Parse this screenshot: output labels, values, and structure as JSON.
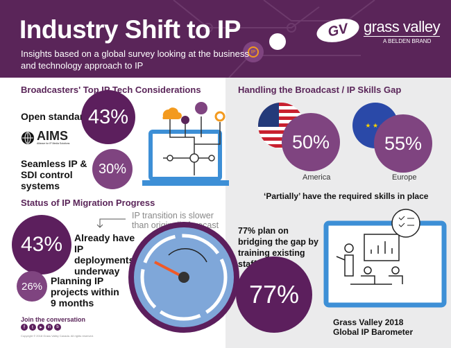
{
  "header": {
    "title": "Industry Shift to IP",
    "subtitle": "Insights based on a global survey looking at the business and technology approach to IP",
    "brand": {
      "name": "grass valley",
      "tagline": "A BELDEN BRAND"
    },
    "pin_label": "IP"
  },
  "considerations": {
    "heading": "Broadcasters' Top IP Tech Considerations",
    "items": [
      {
        "label": "Open standards",
        "value": "43%"
      },
      {
        "label": "Seamless IP & SDI control systems",
        "value": "30%"
      }
    ],
    "aims_logo": "AIMS",
    "aims_tagline": "Alliance for IP Media Solutions"
  },
  "migration": {
    "heading": "Status of IP Migration Progress",
    "note": "IP transition is slower than originally forecast",
    "items": [
      {
        "label": "Already have IP deployments underway",
        "value": "43%"
      },
      {
        "label": "Planning IP projects within 9 months",
        "value": "26%"
      }
    ]
  },
  "footer": {
    "join": "Join the conversation",
    "social_icons": [
      "facebook-icon",
      "twitter-icon",
      "youtube-icon",
      "linkedin-icon",
      "blog-icon"
    ],
    "copyright": "Copyright © 2018 Grass Valley Canada. All rights reserved."
  },
  "skills": {
    "heading": "Handling the Broadcast / IP Skills Gap",
    "regions": [
      {
        "name": "America",
        "value": "50%"
      },
      {
        "name": "Europe",
        "value": "55%"
      }
    ],
    "caption": "‘Partially’ have the required skills in place",
    "training_text": "77% plan on bridging the gap by training existing staff",
    "training_value": "77%",
    "source": "Grass Valley 2018 Global IP Barometer"
  },
  "colors": {
    "purple": "#5a2559",
    "circle_dark": "#5c1f5d",
    "circle_light": "#7f4480",
    "accent_orange": "#f39a1e",
    "tablet_blue": "#3d8fd6",
    "gauge_blue": "#7fa7d9"
  }
}
